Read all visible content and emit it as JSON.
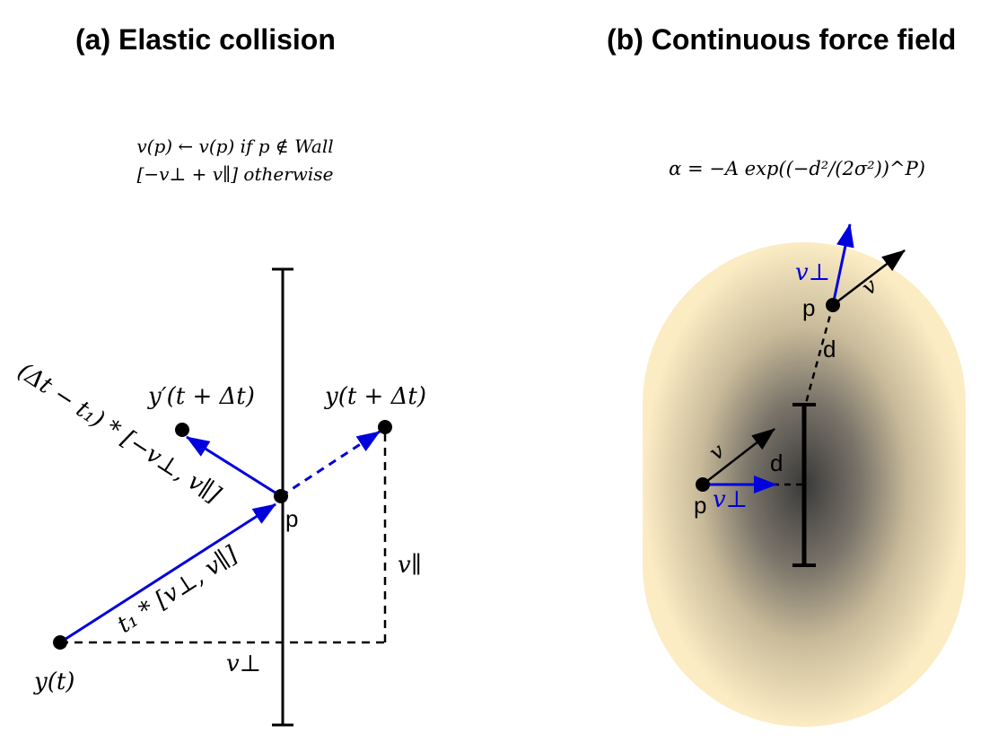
{
  "panel_a": {
    "title": "(a) Elastic collision",
    "formula_line1": "v(p) ← v(p) if p ∉ Wall",
    "formula_line2": "[−v⊥ + v∥] otherwise",
    "label_y_t": "y(t)",
    "label_y_prime": "y′(t + Δt)",
    "label_y_next": "y(t + Δt)",
    "label_p": "p",
    "label_t1": "t₁ * [v⊥, v∥]",
    "label_delta": "(Δt − t₁) * [−v⊥, v∥]",
    "label_v_par": "v∥",
    "label_v_perp": "v⊥"
  },
  "panel_b": {
    "title": "(b) Continuous force field",
    "formula": "α = −A exp((−d²/(2σ²))^P)",
    "label_p_top": "p",
    "label_v_perp_top": "v⊥",
    "label_v_top": "v",
    "label_d_top": "d",
    "label_p_bottom": "p",
    "label_v_bottom": "v",
    "label_v_perp_bottom": "v⊥",
    "label_d_bottom": "d"
  },
  "colors": {
    "blue": "#0000dd",
    "black": "#000000",
    "field_outer": "#fbecc4",
    "field_inner": "#3a3a3a"
  }
}
